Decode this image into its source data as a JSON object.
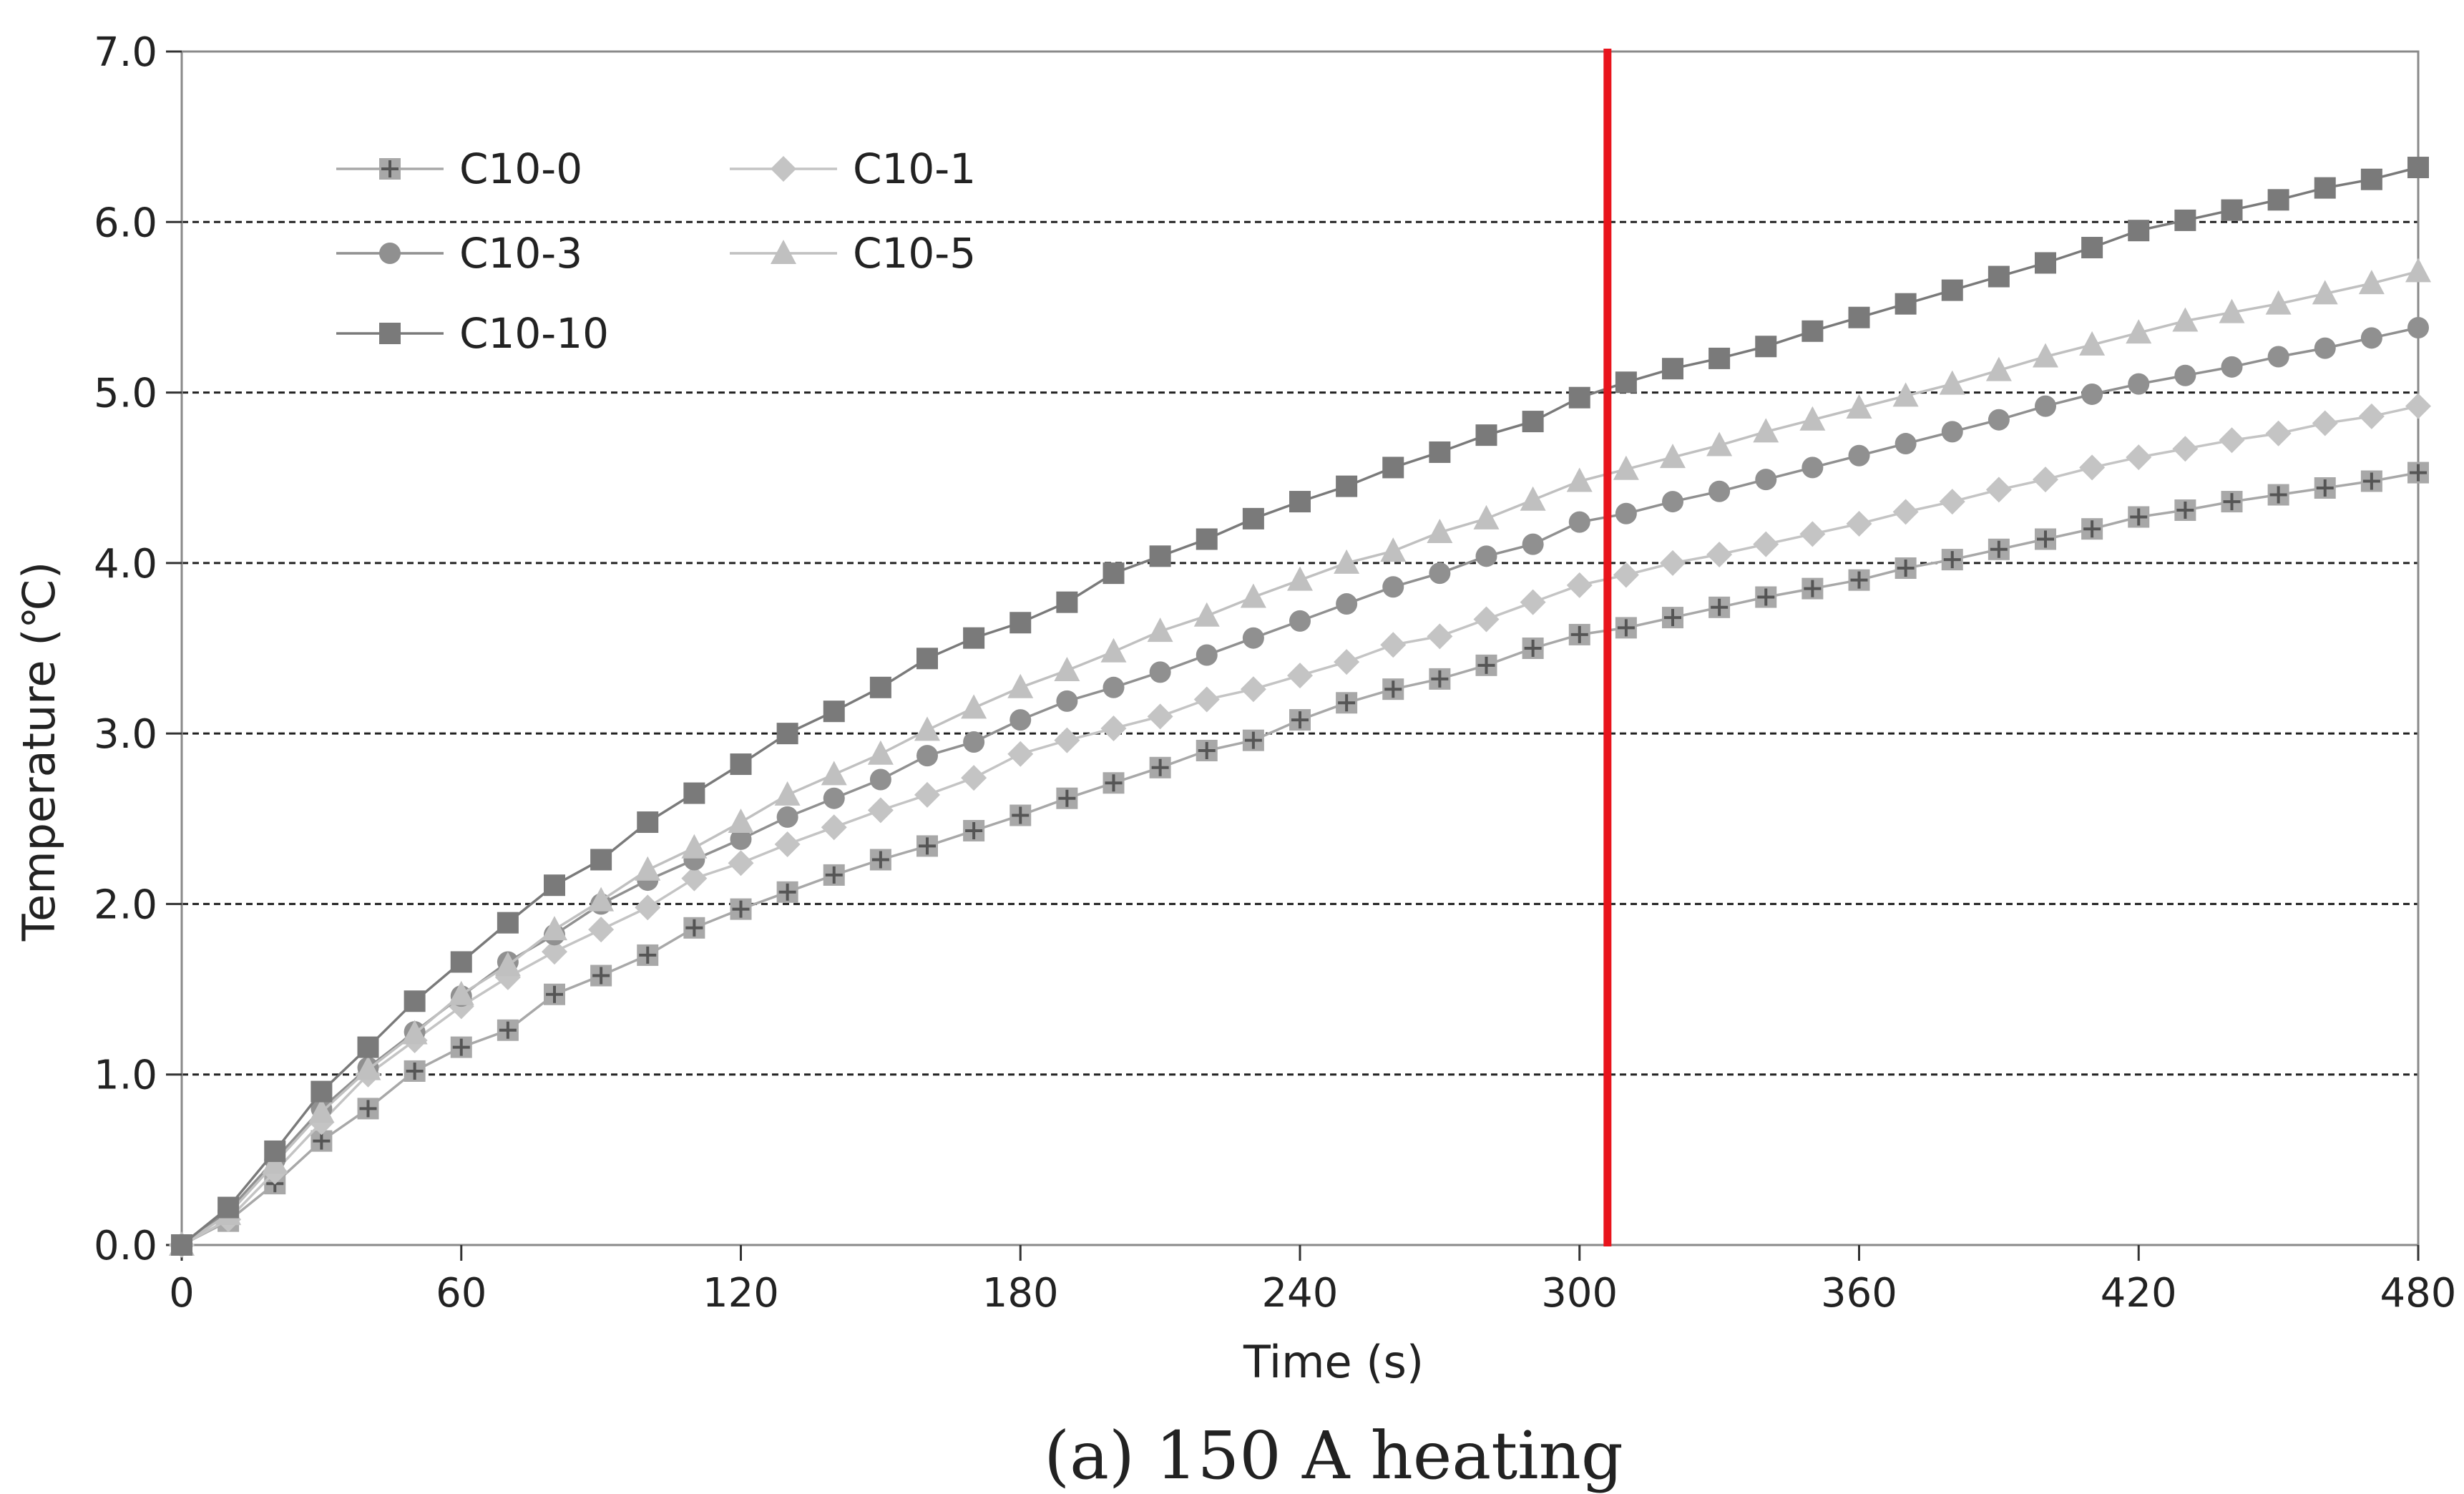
{
  "chart_data": {
    "type": "line",
    "caption": "(a) 150 A heating",
    "xlabel": "Time (s)",
    "ylabel": "Temperature (℃)",
    "xlim": [
      0,
      480
    ],
    "ylim": [
      0,
      7
    ],
    "x_ticks": [
      "0",
      "60",
      "120",
      "180",
      "240",
      "300",
      "360",
      "420",
      "480"
    ],
    "y_ticks": [
      "0.0",
      "1.0",
      "2.0",
      "3.0",
      "4.0",
      "5.0",
      "6.0",
      "7.0"
    ],
    "x_tick_values": [
      0,
      60,
      120,
      180,
      240,
      300,
      360,
      420,
      480
    ],
    "y_tick_values": [
      0,
      1,
      2,
      3,
      4,
      5,
      6,
      7
    ],
    "grid": "horizontal dashed",
    "legend_position": "top-left",
    "reference_line": {
      "x": 306,
      "color": "#e8141c"
    },
    "x": [
      0,
      10,
      20,
      30,
      40,
      50,
      60,
      70,
      80,
      90,
      100,
      110,
      120,
      130,
      140,
      150,
      160,
      170,
      180,
      190,
      200,
      210,
      220,
      230,
      240,
      250,
      260,
      270,
      280,
      290,
      300,
      310,
      320,
      330,
      340,
      350,
      360,
      370,
      380,
      390,
      400,
      410,
      420,
      430,
      440,
      450,
      460,
      470,
      480
    ],
    "series": [
      {
        "name": "C10-0",
        "marker": "square-plus",
        "color": "#a8a8a8",
        "values": [
          0.0,
          0.14,
          0.36,
          0.61,
          0.8,
          1.02,
          1.16,
          1.26,
          1.47,
          1.58,
          1.7,
          1.86,
          1.97,
          2.07,
          2.17,
          2.26,
          2.34,
          2.43,
          2.52,
          2.62,
          2.71,
          2.8,
          2.9,
          2.96,
          3.08,
          3.18,
          3.26,
          3.32,
          3.4,
          3.5,
          3.58,
          3.62,
          3.68,
          3.74,
          3.8,
          3.85,
          3.9,
          3.97,
          4.02,
          4.08,
          4.14,
          4.2,
          4.27,
          4.31,
          4.36,
          4.4,
          4.44,
          4.48,
          4.53
        ]
      },
      {
        "name": "C10-1",
        "marker": "diamond",
        "color": "#c4c4c4",
        "values": [
          0.0,
          0.15,
          0.43,
          0.72,
          1.0,
          1.2,
          1.4,
          1.57,
          1.72,
          1.85,
          1.98,
          2.15,
          2.24,
          2.35,
          2.45,
          2.55,
          2.64,
          2.74,
          2.88,
          2.96,
          3.03,
          3.1,
          3.2,
          3.26,
          3.34,
          3.42,
          3.52,
          3.57,
          3.67,
          3.77,
          3.87,
          3.93,
          4.0,
          4.05,
          4.11,
          4.17,
          4.23,
          4.3,
          4.36,
          4.43,
          4.49,
          4.56,
          4.62,
          4.67,
          4.72,
          4.76,
          4.82,
          4.86,
          4.92
        ]
      },
      {
        "name": "C10-3",
        "marker": "circle",
        "color": "#909090",
        "values": [
          0.0,
          0.2,
          0.5,
          0.8,
          1.04,
          1.25,
          1.46,
          1.66,
          1.82,
          2.0,
          2.14,
          2.26,
          2.38,
          2.51,
          2.62,
          2.73,
          2.87,
          2.95,
          3.08,
          3.19,
          3.27,
          3.36,
          3.46,
          3.56,
          3.66,
          3.76,
          3.86,
          3.94,
          4.04,
          4.11,
          4.24,
          4.29,
          4.36,
          4.42,
          4.49,
          4.56,
          4.63,
          4.7,
          4.77,
          4.84,
          4.92,
          4.99,
          5.05,
          5.1,
          5.15,
          5.21,
          5.26,
          5.32,
          5.38
        ]
      },
      {
        "name": "C10-5",
        "marker": "triangle",
        "color": "#c0c0c0",
        "values": [
          0.0,
          0.18,
          0.48,
          0.78,
          1.03,
          1.24,
          1.47,
          1.64,
          1.85,
          2.02,
          2.2,
          2.33,
          2.48,
          2.64,
          2.76,
          2.88,
          3.02,
          3.15,
          3.27,
          3.37,
          3.48,
          3.6,
          3.69,
          3.8,
          3.9,
          4.0,
          4.07,
          4.18,
          4.26,
          4.37,
          4.48,
          4.55,
          4.62,
          4.69,
          4.77,
          4.84,
          4.91,
          4.98,
          5.05,
          5.13,
          5.21,
          5.28,
          5.35,
          5.42,
          5.47,
          5.52,
          5.58,
          5.64,
          5.71
        ]
      },
      {
        "name": "C10-10",
        "marker": "square",
        "color": "#7a7a7a",
        "values": [
          0.0,
          0.22,
          0.55,
          0.9,
          1.16,
          1.43,
          1.66,
          1.89,
          2.11,
          2.26,
          2.48,
          2.65,
          2.82,
          3.0,
          3.13,
          3.27,
          3.44,
          3.56,
          3.65,
          3.77,
          3.94,
          4.04,
          4.14,
          4.26,
          4.36,
          4.45,
          4.56,
          4.65,
          4.75,
          4.83,
          4.97,
          5.06,
          5.14,
          5.2,
          5.27,
          5.36,
          5.44,
          5.52,
          5.6,
          5.68,
          5.76,
          5.85,
          5.95,
          6.01,
          6.07,
          6.13,
          6.2,
          6.25,
          6.32
        ]
      }
    ]
  }
}
